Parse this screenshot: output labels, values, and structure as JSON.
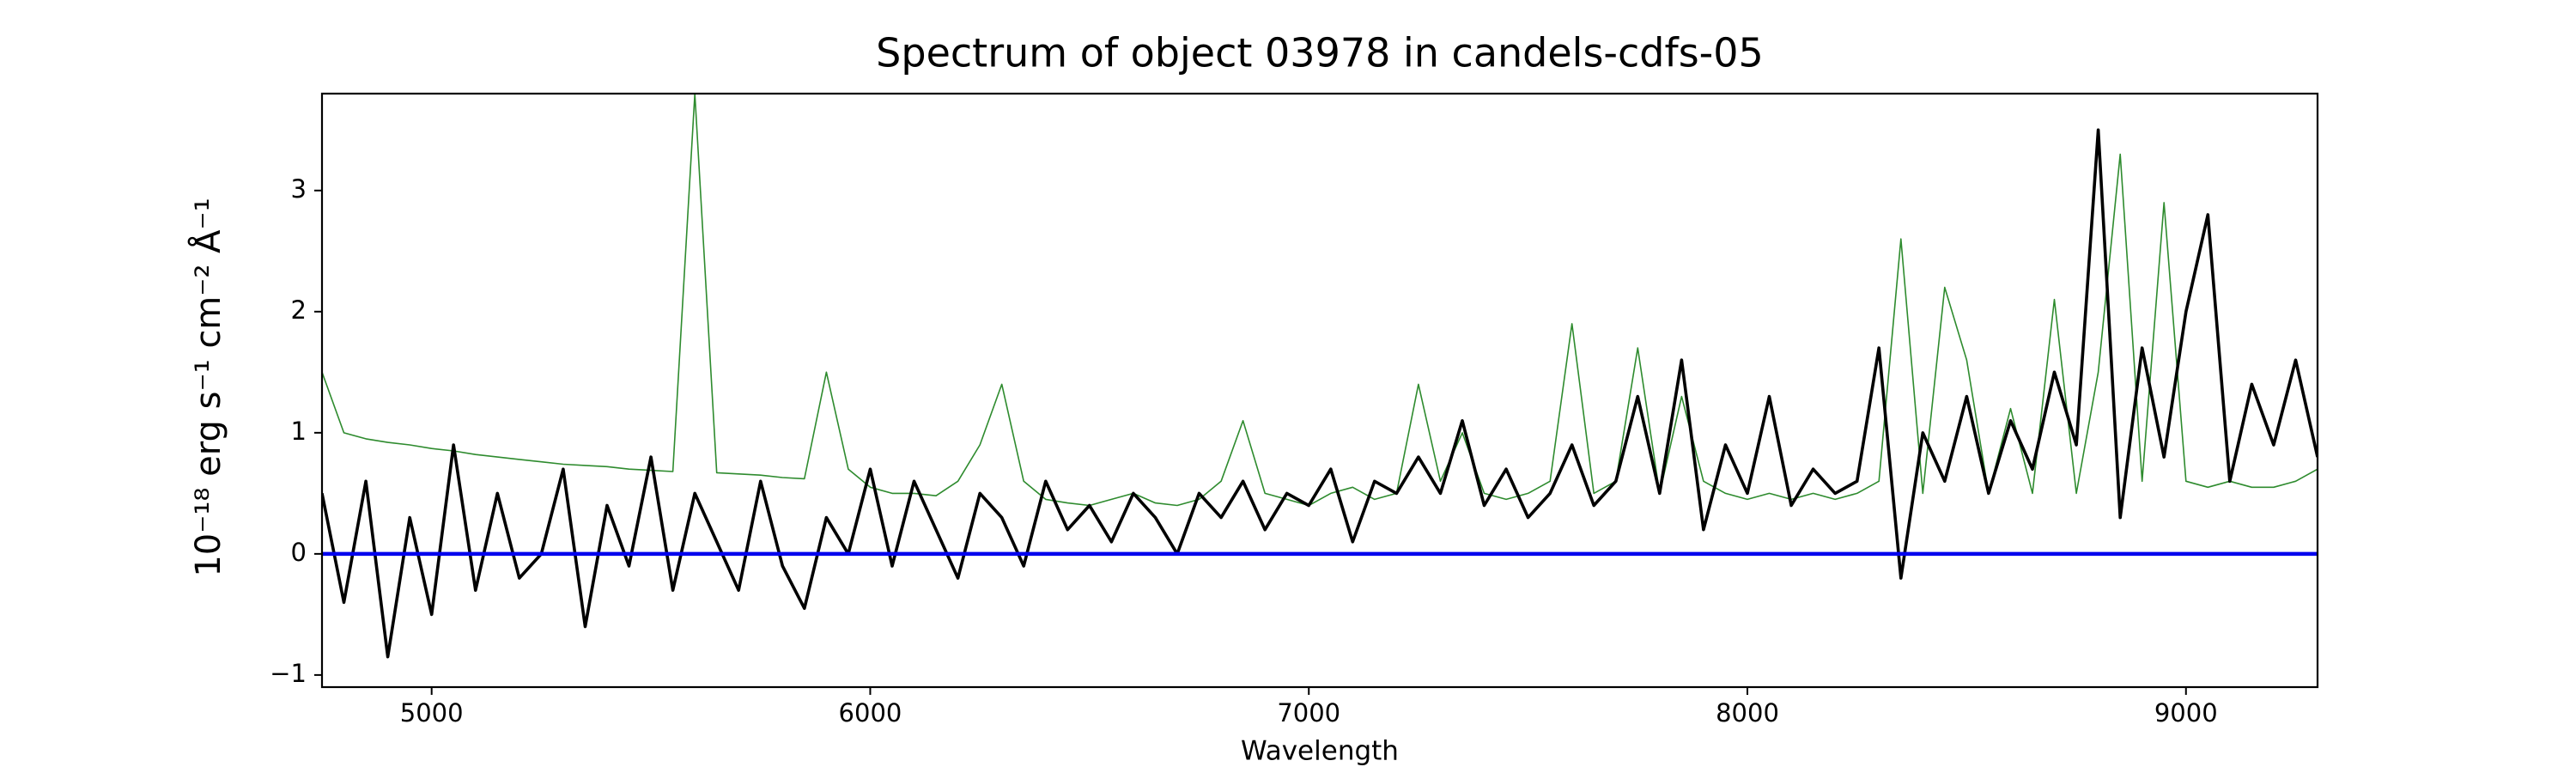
{
  "chart_data": {
    "type": "line",
    "title": "Spectrum of object 03978 in candels-cdfs-05",
    "x_label": "Wavelength",
    "y_label": "10⁻¹⁸ erg s⁻¹ cm⁻² Å⁻¹",
    "x": [
      4750,
      4800,
      4850,
      4900,
      4950,
      5000,
      5050,
      5100,
      5150,
      5200,
      5250,
      5300,
      5350,
      5400,
      5450,
      5500,
      5550,
      5600,
      5650,
      5700,
      5750,
      5800,
      5850,
      5900,
      5950,
      6000,
      6050,
      6100,
      6150,
      6200,
      6250,
      6300,
      6350,
      6400,
      6450,
      6500,
      6550,
      6600,
      6650,
      6700,
      6750,
      6800,
      6850,
      6900,
      6950,
      7000,
      7050,
      7100,
      7150,
      7200,
      7250,
      7300,
      7350,
      7400,
      7450,
      7500,
      7550,
      7600,
      7650,
      7700,
      7750,
      7800,
      7850,
      7900,
      7950,
      8000,
      8050,
      8100,
      8150,
      8200,
      8250,
      8300,
      8350,
      8400,
      8450,
      8500,
      8550,
      8600,
      8650,
      8700,
      8750,
      8800,
      8850,
      8900,
      8950,
      9000,
      9050,
      9100,
      9150,
      9200,
      9250,
      9300
    ],
    "series": [
      {
        "color": "#2e8b2e",
        "width": 1.6,
        "values": [
          1.5,
          1.0,
          0.95,
          0.92,
          0.9,
          0.87,
          0.85,
          0.82,
          0.8,
          0.78,
          0.76,
          0.74,
          0.73,
          0.72,
          0.7,
          0.69,
          0.68,
          3.8,
          0.67,
          0.66,
          0.65,
          0.63,
          0.62,
          1.5,
          0.7,
          0.55,
          0.5,
          0.5,
          0.48,
          0.6,
          0.9,
          1.4,
          0.6,
          0.45,
          0.42,
          0.4,
          0.45,
          0.5,
          0.42,
          0.4,
          0.45,
          0.6,
          1.1,
          0.5,
          0.45,
          0.4,
          0.5,
          0.55,
          0.45,
          0.5,
          1.4,
          0.6,
          1.0,
          0.5,
          0.45,
          0.5,
          0.6,
          1.9,
          0.5,
          0.6,
          1.7,
          0.5,
          1.3,
          0.6,
          0.5,
          0.45,
          0.5,
          0.45,
          0.5,
          0.45,
          0.5,
          0.6,
          2.6,
          0.5,
          2.2,
          1.6,
          0.5,
          1.2,
          0.5,
          2.1,
          0.5,
          1.5,
          3.3,
          0.6,
          2.9,
          0.6,
          0.55,
          0.6,
          0.55,
          0.55,
          0.6,
          0.7
        ]
      },
      {
        "color": "#000000",
        "width": 3.6,
        "values": [
          0.5,
          -0.4,
          0.6,
          -0.85,
          0.3,
          -0.5,
          0.9,
          -0.3,
          0.5,
          -0.2,
          0.0,
          0.7,
          -0.6,
          0.4,
          -0.1,
          0.8,
          -0.3,
          0.5,
          0.1,
          -0.3,
          0.6,
          -0.1,
          -0.45,
          0.3,
          0.0,
          0.7,
          -0.1,
          0.6,
          0.2,
          -0.2,
          0.5,
          0.3,
          -0.1,
          0.6,
          0.2,
          0.4,
          0.1,
          0.5,
          0.3,
          0.0,
          0.5,
          0.3,
          0.6,
          0.2,
          0.5,
          0.4,
          0.7,
          0.1,
          0.6,
          0.5,
          0.8,
          0.5,
          1.1,
          0.4,
          0.7,
          0.3,
          0.5,
          0.9,
          0.4,
          0.6,
          1.3,
          0.5,
          1.6,
          0.2,
          0.9,
          0.5,
          1.3,
          0.4,
          0.7,
          0.5,
          0.6,
          1.7,
          -0.2,
          1.0,
          0.6,
          1.3,
          0.5,
          1.1,
          0.7,
          1.5,
          0.9,
          3.5,
          0.3,
          1.7,
          0.8,
          2.0,
          2.8,
          0.6,
          1.4,
          0.9,
          1.6,
          0.8
        ]
      }
    ],
    "hlines": [
      {
        "y": 0,
        "color": "#0000ee",
        "width": 4.5
      }
    ],
    "xlim": [
      4750,
      9300
    ],
    "ylim": [
      -1.1,
      3.8
    ],
    "xticks": [
      5000,
      6000,
      7000,
      8000,
      9000
    ],
    "yticks": [
      {
        "value": -1,
        "label": "−1"
      },
      0,
      1,
      2,
      3
    ]
  }
}
